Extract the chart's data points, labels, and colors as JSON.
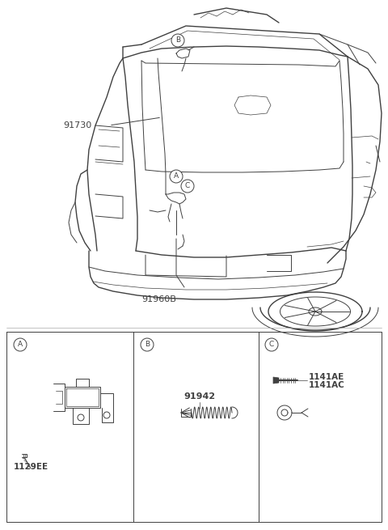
{
  "bg_color": "#ffffff",
  "line_color": "#404040",
  "label_color": "#1a1a1a",
  "fig_width": 4.8,
  "fig_height": 6.55,
  "dpi": 100,
  "car_label_91730": "91730",
  "car_label_91960B": "91960B",
  "part_A_label": "1129EE",
  "part_B_label": "91942",
  "part_C_label1": "1141AE",
  "part_C_label2": "1141AC",
  "callout_A": "A",
  "callout_B": "B",
  "callout_C": "C",
  "lw_main": 1.0,
  "lw_med": 0.7,
  "lw_thin": 0.5
}
